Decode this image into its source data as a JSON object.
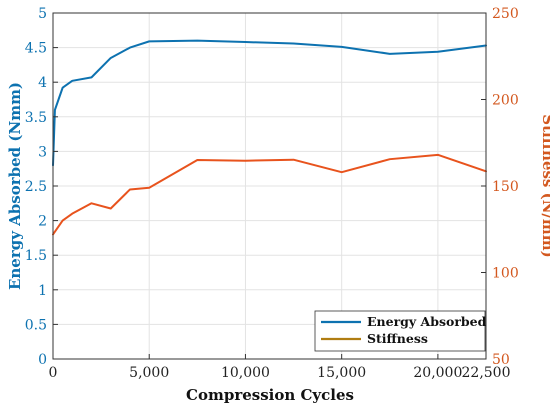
{
  "chart_data": {
    "type": "line",
    "xlabel": "Compression Cycles",
    "ylabel_left": "Energy Absorbed (Nmm)",
    "ylabel_right": "Stiffness (N/mm)",
    "xlim": [
      0,
      22500
    ],
    "ylim_left": [
      0,
      5
    ],
    "ylim_right": [
      50,
      250
    ],
    "x_ticks": [
      0,
      5000,
      10000,
      15000,
      20000,
      22500
    ],
    "x_tick_labels": [
      "0",
      "5,000",
      "10,000",
      "15,000",
      "20,000",
      "22,500"
    ],
    "y_left_ticks": [
      0,
      0.5,
      1,
      1.5,
      2,
      2.5,
      3,
      3.5,
      4,
      4.5,
      5
    ],
    "y_left_tick_labels": [
      "0",
      "0.5",
      "1",
      "1.5",
      "2",
      "2.5",
      "3",
      "3.5",
      "4",
      "4.5",
      "5"
    ],
    "y_right_ticks": [
      50,
      100,
      150,
      200,
      250
    ],
    "y_right_tick_labels": [
      "50",
      "100",
      "150",
      "200",
      "250"
    ],
    "grid": true,
    "legend_position": "bottom-right",
    "colors": {
      "energy": "#0d72b0",
      "stiffness_line": "#e8531d",
      "stiffness_legend": "#b07d12",
      "right_axis": "#d3581f"
    },
    "series": [
      {
        "name": "Energy Absorbed",
        "axis": "left",
        "x": [
          0,
          100,
          500,
          1000,
          2000,
          3000,
          4000,
          5000,
          7500,
          10000,
          12500,
          15000,
          17500,
          20000,
          22500
        ],
        "values": [
          2.8,
          3.6,
          3.92,
          4.02,
          4.07,
          4.35,
          4.5,
          4.59,
          4.6,
          4.58,
          4.56,
          4.51,
          4.41,
          4.44,
          4.53
        ]
      },
      {
        "name": "Stiffness",
        "axis": "right",
        "x": [
          0,
          500,
          1000,
          2000,
          3000,
          4000,
          5000,
          7500,
          10000,
          12500,
          15000,
          17500,
          20000,
          22500
        ],
        "values": [
          122,
          130,
          134,
          140,
          137,
          148,
          149,
          165,
          164.6,
          165.2,
          158,
          165.5,
          168,
          158.5
        ]
      }
    ]
  }
}
